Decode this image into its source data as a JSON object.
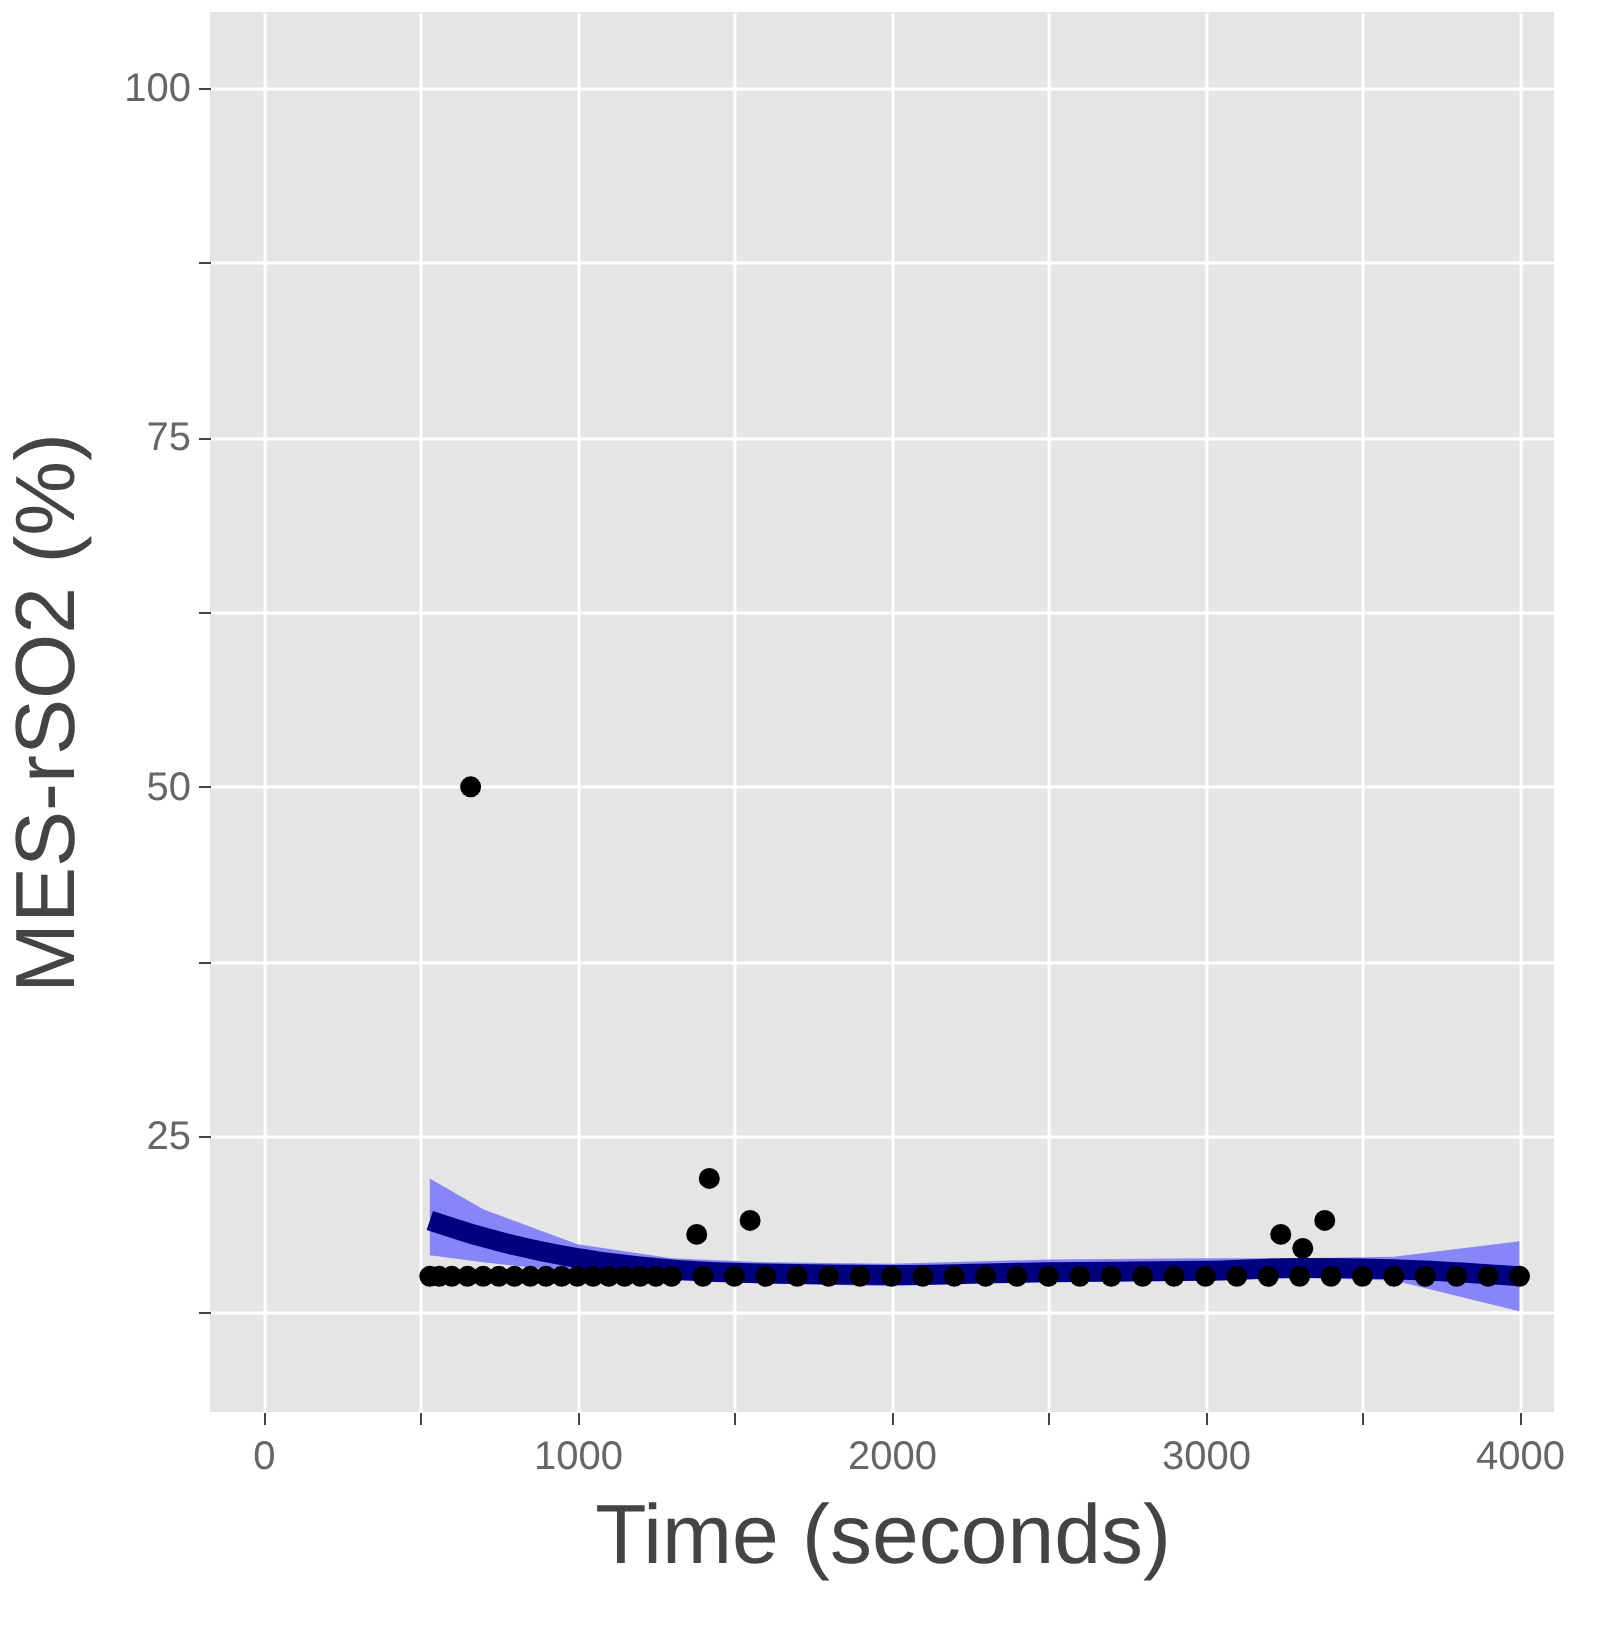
{
  "chart_data": {
    "type": "scatter",
    "xlabel": "Time (seconds)",
    "ylabel": "MES-rSO2 (%)",
    "xlim": [
      -170,
      4110
    ],
    "ylim": [
      5.3,
      105.4
    ],
    "xticks": [
      0,
      {
        "value": 500,
        "label": null
      },
      1000,
      {
        "value": 1500,
        "label": null
      },
      2000,
      {
        "value": 2500,
        "label": null
      },
      3000,
      {
        "value": 3500,
        "label": null
      },
      4000
    ],
    "yticks": [
      {
        "value": 12.5,
        "label": null
      },
      25,
      {
        "value": 37.5,
        "label": null
      },
      50,
      {
        "value": 62.5,
        "label": null
      },
      75,
      {
        "value": 87.5,
        "label": null
      },
      100
    ],
    "grid": true,
    "marker": "circle",
    "series": [
      {
        "color": "#000000",
        "x": [
          530,
          560,
          600,
          650,
          660,
          700,
          750,
          800,
          850,
          900,
          950,
          1000,
          1050,
          1100,
          1150,
          1200,
          1250,
          1300,
          1380,
          1420,
          1400,
          1500,
          1550,
          1600,
          1700,
          1800,
          1900,
          2000,
          2100,
          2200,
          2300,
          2400,
          2500,
          2600,
          2700,
          2800,
          2900,
          3000,
          3100,
          3200,
          3240,
          3300,
          3310,
          3380,
          3400,
          3500,
          3600,
          3700,
          3800,
          3900,
          4000
        ],
        "values": [
          15,
          15,
          15,
          15,
          50,
          15,
          15,
          15,
          15,
          15,
          15,
          15,
          15,
          15,
          15,
          15,
          15,
          15,
          18,
          22,
          15,
          15,
          19,
          15,
          15,
          15,
          15,
          15,
          15,
          15,
          15,
          15,
          15,
          15,
          15,
          15,
          15,
          15,
          15,
          15,
          18,
          15,
          17,
          19,
          15,
          15,
          15,
          15,
          15,
          15,
          15
        ]
      },
      {
        "type": "line",
        "color": "#000080",
        "line_style": "solid",
        "marker": "none",
        "x": [
          530,
          700,
          1000,
          1300,
          1600,
          2000,
          2500,
          3000,
          3300,
          3600,
          4000
        ],
        "values": [
          19,
          17.8,
          16.3,
          15.5,
          15.2,
          15.1,
          15.3,
          15.4,
          15.6,
          15.5,
          15.0
        ],
        "lower": [
          16.5,
          16.0,
          15.3,
          14.7,
          14.5,
          14.3,
          14.7,
          14.8,
          14.9,
          14.7,
          12.5
        ],
        "upper": [
          22,
          19.8,
          17.3,
          16.3,
          16.0,
          15.9,
          16.2,
          16.3,
          16.3,
          16.4,
          17.5
        ]
      }
    ]
  }
}
